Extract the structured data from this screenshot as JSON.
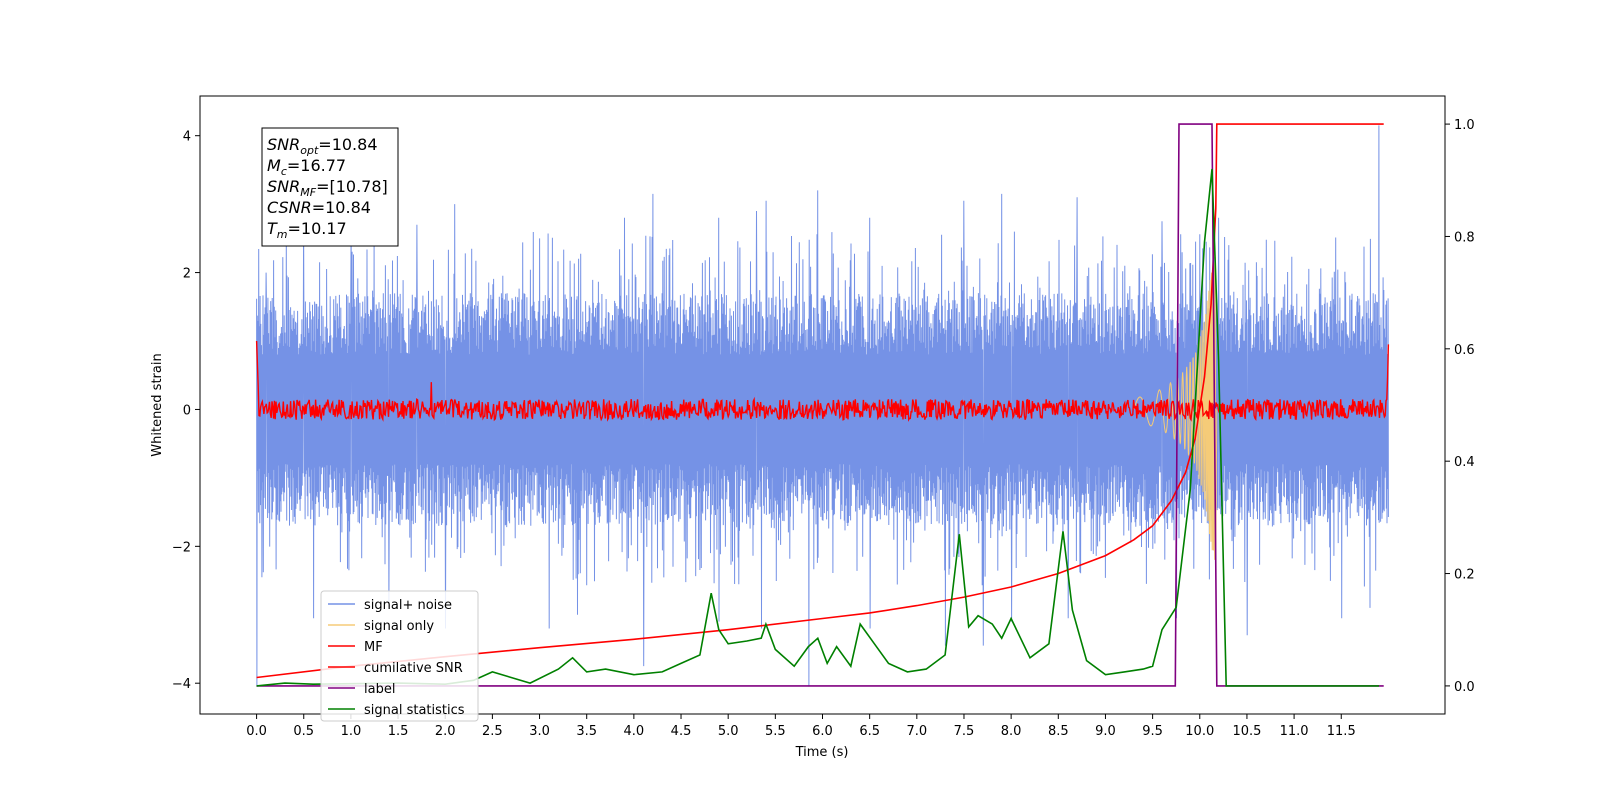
{
  "chart_data": {
    "type": "line",
    "xlabel": "Time (s)",
    "ylabel": "Whitened strain",
    "xlim": [
      -0.6,
      12.6
    ],
    "ylim": [
      -4.45,
      4.58
    ],
    "ylim_right": [
      -0.05,
      1.05
    ],
    "x_ticks": [
      0.0,
      0.5,
      1.0,
      1.5,
      2.0,
      2.5,
      3.0,
      3.5,
      4.0,
      4.5,
      5.0,
      5.5,
      6.0,
      6.5,
      7.0,
      7.5,
      8.0,
      8.5,
      9.0,
      9.5,
      10.0,
      10.5,
      11.0,
      11.5
    ],
    "x_tick_labels": [
      "0.0",
      "0.5",
      "1.0",
      "1.5",
      "2.0",
      "2.5",
      "3.0",
      "3.5",
      "4.0",
      "4.5",
      "5.0",
      "5.5",
      "6.0",
      "6.5",
      "7.0",
      "7.5",
      "8.0",
      "8.5",
      "9.0",
      "9.5",
      "10.0",
      "10.5",
      "11.0",
      "11.5"
    ],
    "y_ticks": [
      -4,
      -2,
      0,
      2,
      4
    ],
    "y_tick_labels": [
      "−4",
      "−2",
      "0",
      "2",
      "4"
    ],
    "y_ticks_right": [
      0.0,
      0.2,
      0.4,
      0.6,
      0.8,
      1.0
    ],
    "y_tick_labels_right": [
      "0.0",
      "0.2",
      "0.4",
      "0.6",
      "0.8",
      "1.0"
    ],
    "grid": false,
    "legend_position": "lower-left",
    "annotation": {
      "lines": [
        {
          "sym": "SNR",
          "sub": "opt",
          "value": "=10.84"
        },
        {
          "sym": "M",
          "sub": "c",
          "value": "=16.77"
        },
        {
          "sym": "SNR",
          "sub": "MF",
          "value": "=[10.78]"
        },
        {
          "sym": "CSNR",
          "sub": "",
          "value": "=10.84"
        },
        {
          "sym": "T",
          "sub": "m",
          "value": "=10.17"
        }
      ]
    },
    "series": [
      {
        "name": "signal+ noise",
        "color": "#7592e6",
        "axis": "left",
        "style": "noise",
        "x_range": [
          0.0,
          12.0
        ],
        "envelope": 1.9,
        "peaks_top": [
          [
            0.1,
            2.0
          ],
          [
            0.5,
            2.75
          ],
          [
            1.0,
            2.6
          ],
          [
            1.7,
            2.7
          ],
          [
            2.1,
            3.0
          ],
          [
            3.0,
            2.5
          ],
          [
            3.9,
            2.8
          ],
          [
            4.2,
            3.15
          ],
          [
            4.9,
            2.8
          ],
          [
            5.3,
            2.9
          ],
          [
            5.4,
            3.05
          ],
          [
            5.95,
            3.2
          ],
          [
            6.5,
            2.8
          ],
          [
            7.5,
            3.05
          ],
          [
            7.9,
            3.15
          ],
          [
            8.7,
            3.1
          ],
          [
            9.6,
            2.75
          ],
          [
            10.2,
            2.8
          ],
          [
            11.9,
            4.15
          ]
        ],
        "peaks_bottom": [
          [
            0.0,
            -4.05
          ],
          [
            0.6,
            -3.05
          ],
          [
            1.4,
            -2.9
          ],
          [
            2.0,
            -3.2
          ],
          [
            3.1,
            -3.2
          ],
          [
            3.4,
            -3.0
          ],
          [
            4.1,
            -3.75
          ],
          [
            4.9,
            -3.1
          ],
          [
            5.35,
            -3.2
          ],
          [
            5.85,
            -4.05
          ],
          [
            6.5,
            -3.2
          ],
          [
            7.3,
            -3.45
          ],
          [
            7.7,
            -3.45
          ],
          [
            8.0,
            -3.1
          ],
          [
            8.6,
            -3.05
          ],
          [
            9.75,
            -3.05
          ],
          [
            10.5,
            -3.3
          ],
          [
            11.5,
            -3.05
          ],
          [
            11.8,
            -2.9
          ]
        ]
      },
      {
        "name": "signal only",
        "color": "#f5cb78",
        "axis": "left",
        "style": "chirp",
        "x": [
          9.3,
          9.6,
          9.8,
          9.95,
          10.05,
          10.12,
          10.17
        ],
        "amplitude": [
          0.15,
          0.3,
          0.5,
          0.8,
          1.3,
          2.0,
          2.3
        ]
      },
      {
        "name": "MF",
        "color": "#ff0000",
        "axis": "left",
        "style": "mf",
        "x_range": [
          0.0,
          12.0
        ],
        "band": 0.15,
        "spikes": [
          [
            0.0,
            1.0
          ],
          [
            1.85,
            0.4
          ],
          [
            11.95,
            0.95
          ]
        ]
      },
      {
        "name": "cumilative SNR",
        "color": "#ff0000",
        "axis": "right",
        "style": "line",
        "x": [
          0.0,
          1.0,
          2.0,
          3.0,
          4.0,
          5.0,
          6.0,
          6.5,
          7.0,
          7.5,
          8.0,
          8.5,
          9.0,
          9.3,
          9.5,
          9.7,
          9.85,
          9.95,
          10.05,
          10.12,
          10.17,
          10.18,
          11.95
        ],
        "y": [
          0.015,
          0.035,
          0.052,
          0.068,
          0.083,
          0.1,
          0.12,
          0.13,
          0.143,
          0.158,
          0.176,
          0.2,
          0.232,
          0.26,
          0.285,
          0.33,
          0.38,
          0.44,
          0.55,
          0.68,
          0.85,
          1.0,
          1.0
        ]
      },
      {
        "name": "label",
        "color": "#800080",
        "axis": "right",
        "style": "line",
        "x": [
          0.0,
          9.74,
          9.78,
          10.13,
          10.18,
          11.95
        ],
        "y": [
          0.0,
          0.0,
          1.0,
          1.0,
          0.0,
          0.0
        ]
      },
      {
        "name": "signal statistics",
        "color": "#008000",
        "axis": "right",
        "style": "line",
        "x": [
          0.0,
          0.3,
          0.6,
          1.0,
          1.5,
          2.0,
          2.3,
          2.5,
          2.9,
          3.2,
          3.35,
          3.5,
          3.7,
          4.0,
          4.3,
          4.5,
          4.7,
          4.82,
          4.9,
          5.0,
          5.2,
          5.35,
          5.4,
          5.5,
          5.7,
          5.85,
          5.95,
          6.05,
          6.15,
          6.3,
          6.4,
          6.55,
          6.7,
          6.9,
          7.1,
          7.3,
          7.45,
          7.55,
          7.65,
          7.8,
          7.9,
          8.0,
          8.2,
          8.4,
          8.55,
          8.65,
          8.8,
          9.0,
          9.2,
          9.4,
          9.5,
          9.6,
          9.75,
          9.9,
          10.05,
          10.13,
          10.2,
          10.28,
          11.9
        ],
        "y": [
          0.0,
          0.005,
          0.003,
          0.004,
          0.005,
          0.003,
          0.01,
          0.025,
          0.005,
          0.03,
          0.05,
          0.025,
          0.03,
          0.02,
          0.025,
          0.04,
          0.055,
          0.165,
          0.1,
          0.075,
          0.08,
          0.085,
          0.11,
          0.065,
          0.035,
          0.07,
          0.085,
          0.04,
          0.07,
          0.035,
          0.11,
          0.075,
          0.04,
          0.025,
          0.03,
          0.055,
          0.27,
          0.105,
          0.125,
          0.11,
          0.085,
          0.12,
          0.05,
          0.075,
          0.275,
          0.135,
          0.045,
          0.02,
          0.025,
          0.03,
          0.035,
          0.1,
          0.14,
          0.35,
          0.79,
          0.92,
          0.58,
          0.0,
          0.0
        ]
      }
    ]
  }
}
